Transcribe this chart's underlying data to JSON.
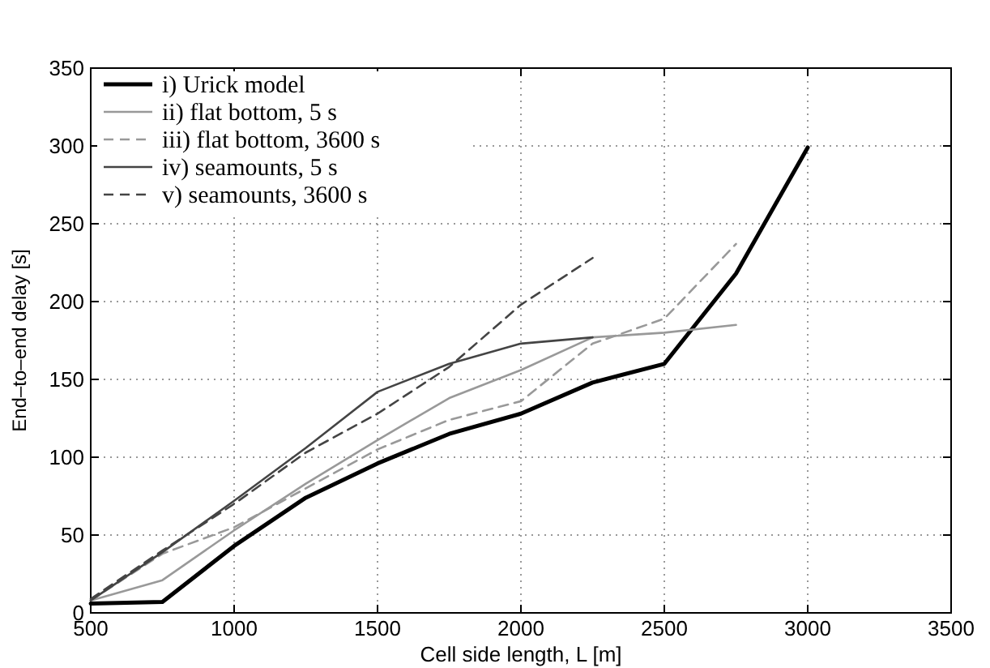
{
  "chart_data": {
    "type": "line",
    "xlabel": "Cell side length, L [m]",
    "ylabel": "End–to–end delay [s]",
    "x": [
      500,
      750,
      1000,
      1250,
      1500,
      1750,
      2000,
      2250,
      2500,
      2750,
      3000
    ],
    "xlim": [
      500,
      3500
    ],
    "xticks": [
      500,
      1000,
      1500,
      2000,
      2500,
      3000,
      3500
    ],
    "ylim": [
      0,
      350
    ],
    "yticks": [
      0,
      50,
      100,
      150,
      200,
      250,
      300,
      350
    ],
    "grid": true,
    "legend": "top left",
    "marker": "none",
    "series": [
      {
        "name": "i) Urick model",
        "color": "#000000",
        "line_style": "solid",
        "values": [
          6,
          7,
          43,
          74,
          96,
          115,
          128,
          148,
          160,
          218,
          299
        ]
      },
      {
        "name": "ii) flat bottom, 5 s",
        "color": "#999999",
        "line_style": "solid",
        "values": [
          8,
          21,
          53,
          83,
          111,
          138,
          156,
          177,
          180,
          185,
          null
        ]
      },
      {
        "name": "iii) flat bottom, 3600 s",
        "color": "#999999",
        "line_style": "dashed",
        "values": [
          8,
          38,
          55,
          80,
          105,
          124,
          136,
          173,
          189,
          237,
          null
        ]
      },
      {
        "name": "iv) seamounts, 5 s",
        "color": "#444444",
        "line_style": "solid",
        "values": [
          8,
          39,
          72,
          106,
          142,
          160,
          173,
          177,
          null,
          null,
          null
        ]
      },
      {
        "name": "v) seamounts, 3600 s",
        "color": "#444444",
        "line_style": "dashed",
        "values": [
          9,
          40,
          70,
          103,
          128,
          158,
          198,
          228,
          null,
          null,
          null
        ]
      }
    ]
  }
}
